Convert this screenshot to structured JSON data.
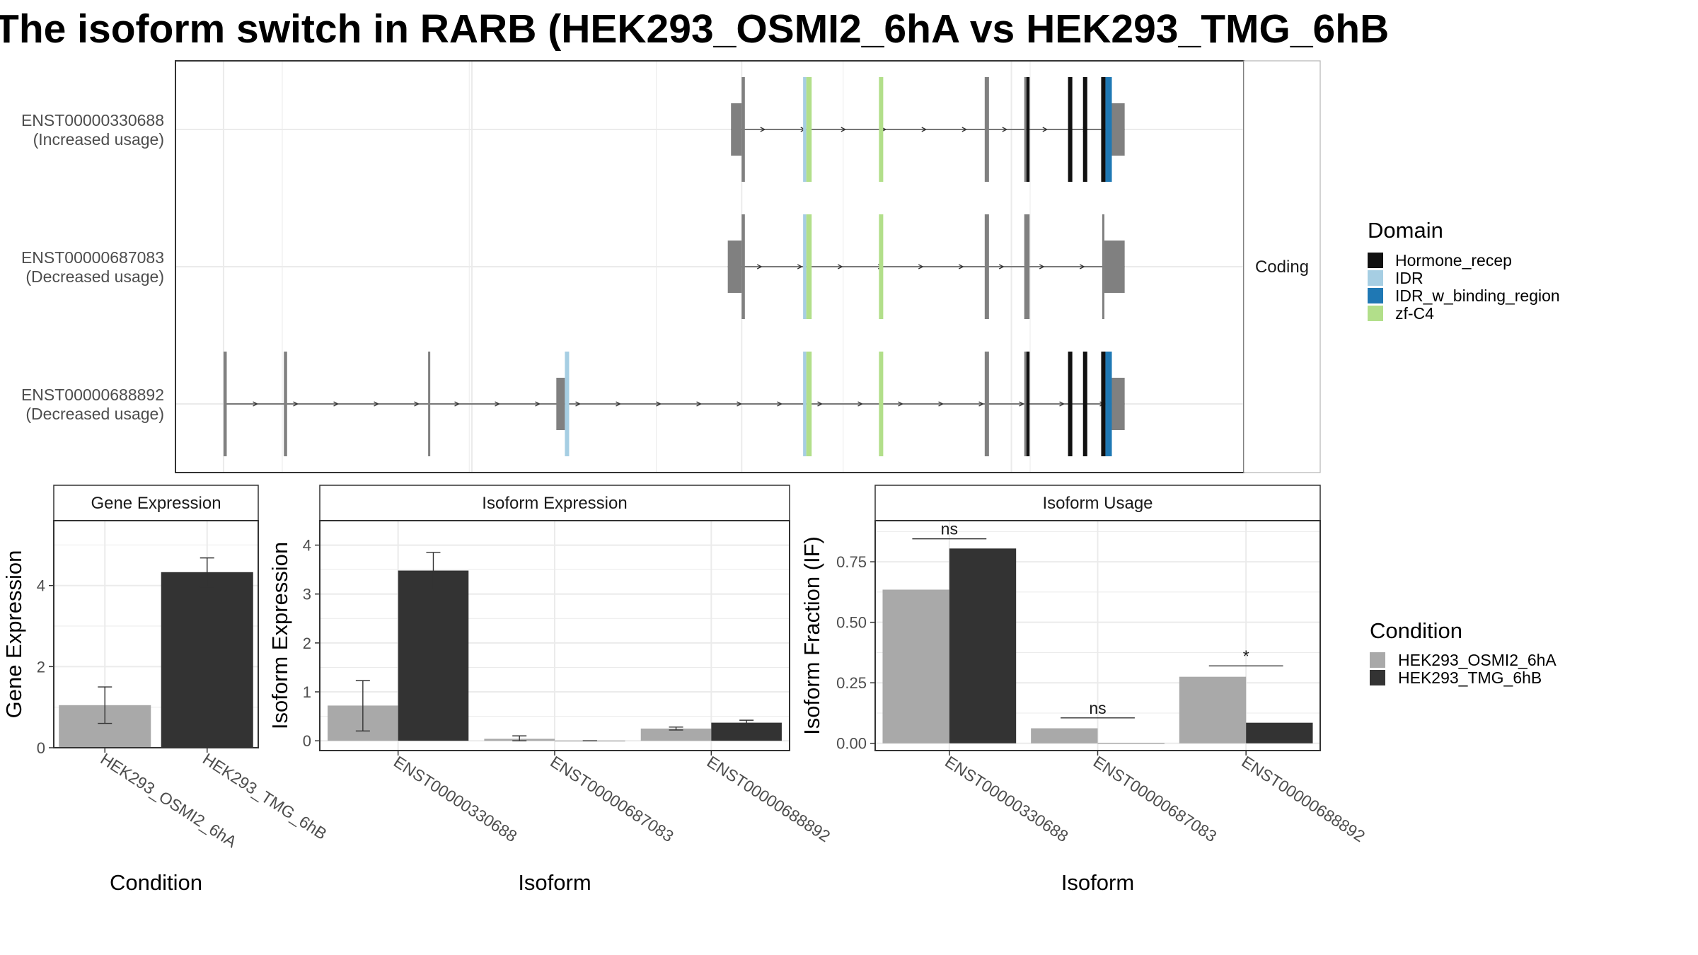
{
  "title": "The isoform switch in RARB (HEK293_OSMI2_6hA vs HEK293_TMG_6hB",
  "colors": {
    "condA": "#a9a9a9",
    "condB": "#333333",
    "exon": "#808080",
    "Hormone_recep": "#111111",
    "IDR": "#a6cee3",
    "IDR_w_binding_region": "#1f78b4",
    "zf-C4": "#b2df8a"
  },
  "chart_data": [
    {
      "type": "transcript-structure",
      "strip_label": "Coding",
      "transcripts": [
        {
          "id": "ENST00000330688",
          "usage": "(Increased usage)",
          "exons": [
            {
              "start": 0.52,
              "end": 0.53,
              "kind": "utr"
            },
            {
              "start": 0.53,
              "end": 0.533,
              "kind": "cds"
            },
            {
              "start": 0.5875,
              "end": 0.5905,
              "kind": "cds",
              "domain": "IDR"
            },
            {
              "start": 0.5905,
              "end": 0.5955,
              "kind": "cds",
              "domain": "zf-C4"
            },
            {
              "start": 0.6585,
              "end": 0.6625,
              "kind": "cds",
              "domain": "zf-C4"
            },
            {
              "start": 0.7575,
              "end": 0.7615,
              "kind": "cds"
            },
            {
              "start": 0.7945,
              "end": 0.7965,
              "kind": "cds"
            },
            {
              "start": 0.7965,
              "end": 0.7995,
              "kind": "cds",
              "domain": "Hormone_recep"
            },
            {
              "start": 0.8355,
              "end": 0.8395,
              "kind": "cds",
              "domain": "Hormone_recep"
            },
            {
              "start": 0.8495,
              "end": 0.8535,
              "kind": "cds",
              "domain": "Hormone_recep"
            },
            {
              "start": 0.8665,
              "end": 0.8705,
              "kind": "cds",
              "domain": "Hormone_recep"
            },
            {
              "start": 0.8705,
              "end": 0.8765,
              "kind": "cds",
              "domain": "IDR_w_binding_region"
            },
            {
              "start": 0.8765,
              "end": 0.8885,
              "kind": "utr"
            }
          ]
        },
        {
          "id": "ENST00000687083",
          "usage": "(Decreased usage)",
          "exons": [
            {
              "start": 0.517,
              "end": 0.53,
              "kind": "utr"
            },
            {
              "start": 0.53,
              "end": 0.533,
              "kind": "cds"
            },
            {
              "start": 0.5875,
              "end": 0.5905,
              "kind": "cds",
              "domain": "IDR"
            },
            {
              "start": 0.5905,
              "end": 0.5955,
              "kind": "cds",
              "domain": "zf-C4"
            },
            {
              "start": 0.6585,
              "end": 0.6625,
              "kind": "cds",
              "domain": "zf-C4"
            },
            {
              "start": 0.7575,
              "end": 0.7615,
              "kind": "cds"
            },
            {
              "start": 0.7945,
              "end": 0.7995,
              "kind": "cds"
            },
            {
              "start": 0.8675,
              "end": 0.8695,
              "kind": "cds"
            },
            {
              "start": 0.8695,
              "end": 0.8885,
              "kind": "utr"
            }
          ]
        },
        {
          "id": "ENST00000688892",
          "usage": "(Decreased usage)",
          "exons": [
            {
              "start": 0.045,
              "end": 0.048,
              "kind": "cds"
            },
            {
              "start": 0.1015,
              "end": 0.1045,
              "kind": "cds"
            },
            {
              "start": 0.2365,
              "end": 0.2385,
              "kind": "cds"
            },
            {
              "start": 0.3565,
              "end": 0.3645,
              "kind": "utr"
            },
            {
              "start": 0.3645,
              "end": 0.3685,
              "kind": "cds",
              "domain": "IDR"
            },
            {
              "start": 0.5875,
              "end": 0.5905,
              "kind": "cds",
              "domain": "IDR"
            },
            {
              "start": 0.5905,
              "end": 0.5955,
              "kind": "cds",
              "domain": "zf-C4"
            },
            {
              "start": 0.6585,
              "end": 0.6625,
              "kind": "cds",
              "domain": "zf-C4"
            },
            {
              "start": 0.7575,
              "end": 0.7615,
              "kind": "cds"
            },
            {
              "start": 0.7945,
              "end": 0.7965,
              "kind": "cds"
            },
            {
              "start": 0.7965,
              "end": 0.7995,
              "kind": "cds",
              "domain": "Hormone_recep"
            },
            {
              "start": 0.8355,
              "end": 0.8395,
              "kind": "cds",
              "domain": "Hormone_recep"
            },
            {
              "start": 0.8495,
              "end": 0.8535,
              "kind": "cds",
              "domain": "Hormone_recep"
            },
            {
              "start": 0.8665,
              "end": 0.8705,
              "kind": "cds",
              "domain": "Hormone_recep"
            },
            {
              "start": 0.8705,
              "end": 0.8765,
              "kind": "cds",
              "domain": "IDR_w_binding_region"
            },
            {
              "start": 0.8765,
              "end": 0.8885,
              "kind": "utr"
            }
          ]
        }
      ]
    },
    {
      "type": "bar",
      "title": "Gene Expression",
      "xlabel": "Condition",
      "ylabel": "Gene Expression",
      "ylim": [
        0,
        5.6
      ],
      "yticks": [
        0,
        2,
        4
      ],
      "grid": true,
      "categories": [
        "HEK293_OSMI2_6hA",
        "HEK293_TMG_6hB"
      ],
      "values": [
        1.05,
        4.33
      ],
      "errors": [
        [
          0.6,
          1.5
        ],
        [
          3.97,
          4.68
        ]
      ]
    },
    {
      "type": "bar",
      "title": "Isoform Expression",
      "xlabel": "Isoform",
      "ylabel": "Isoform Expression",
      "ylim": [
        -0.2,
        4.5
      ],
      "yticks": [
        0,
        1,
        2,
        3,
        4
      ],
      "grid": true,
      "categories": [
        "ENST00000330688",
        "ENST00000687083",
        "ENST00000688892"
      ],
      "series": [
        {
          "name": "HEK293_OSMI2_6hA",
          "values": [
            0.72,
            0.04,
            0.25
          ],
          "errors": [
            [
              0.2,
              1.23
            ],
            [
              0.0,
              0.1
            ],
            [
              0.22,
              0.28
            ]
          ]
        },
        {
          "name": "HEK293_TMG_6hB",
          "values": [
            3.48,
            0.0,
            0.37
          ],
          "errors": [
            [
              3.1,
              3.85
            ],
            [
              0.0,
              0.0
            ],
            [
              0.32,
              0.42
            ]
          ]
        }
      ]
    },
    {
      "type": "bar",
      "title": "Isoform Usage",
      "xlabel": "Isoform",
      "ylabel": "Isoform Fraction (IF)",
      "ylim": [
        -0.03,
        0.92
      ],
      "yticks": [
        0,
        0.25,
        0.5,
        0.75
      ],
      "ytick_labels": [
        "0.00",
        "0.25",
        "0.50",
        "0.75"
      ],
      "grid": true,
      "categories": [
        "ENST00000330688",
        "ENST00000687083",
        "ENST00000688892"
      ],
      "series": [
        {
          "name": "HEK293_OSMI2_6hA",
          "values": [
            0.635,
            0.062,
            0.275
          ]
        },
        {
          "name": "HEK293_TMG_6hB",
          "values": [
            0.805,
            0.0,
            0.085
          ]
        }
      ],
      "significance": [
        {
          "label": "ns",
          "y": 0.845
        },
        {
          "label": "ns",
          "y": 0.105
        },
        {
          "label": "*",
          "y": 0.32
        }
      ]
    }
  ],
  "legend_domain": {
    "title": "Domain",
    "items": [
      {
        "label": "Hormone_recep",
        "color": "#111111"
      },
      {
        "label": "IDR",
        "color": "#a6cee3"
      },
      {
        "label": "IDR_w_binding_region",
        "color": "#1f78b4"
      },
      {
        "label": "zf-C4",
        "color": "#b2df8a"
      }
    ]
  },
  "legend_condition": {
    "title": "Condition",
    "items": [
      {
        "label": "HEK293_OSMI2_6hA",
        "color": "#a9a9a9"
      },
      {
        "label": "HEK293_TMG_6hB",
        "color": "#333333"
      }
    ]
  }
}
